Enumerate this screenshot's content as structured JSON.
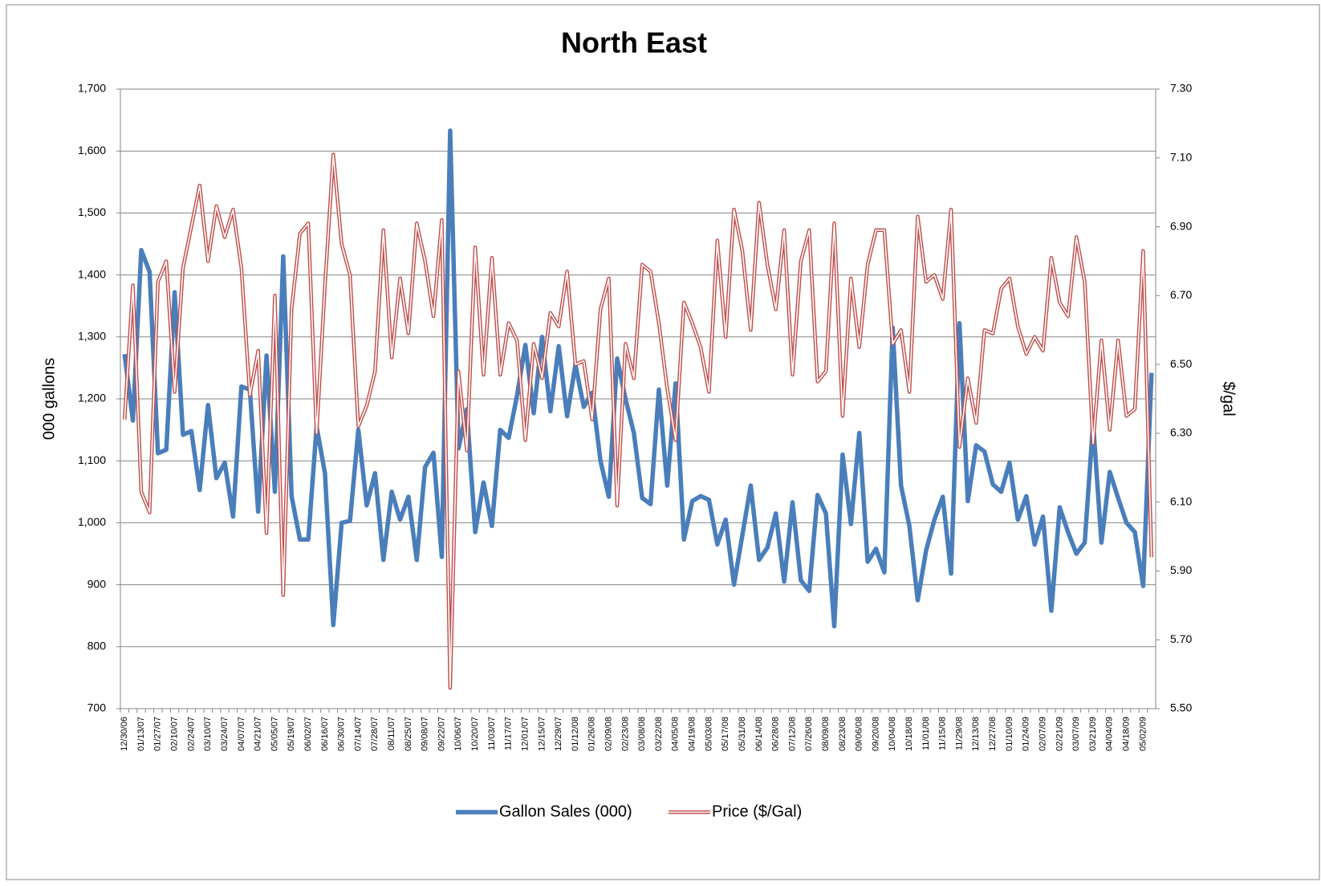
{
  "chart_data": {
    "type": "line",
    "title": "North East",
    "y_label": "000 gallons",
    "y2_label": "$/gal",
    "categories": [
      "12/30/06",
      null,
      "01/13/07",
      null,
      "01/27/07",
      null,
      "02/10/07",
      null,
      "02/24/07",
      null,
      "03/10/07",
      null,
      "03/24/07",
      null,
      "04/07/07",
      null,
      "04/21/07",
      null,
      "05/05/07",
      null,
      "05/19/07",
      null,
      "06/02/07",
      null,
      "06/16/07",
      null,
      "06/30/07",
      null,
      "07/14/07",
      null,
      "07/28/07",
      null,
      "08/11/07",
      null,
      "08/25/07",
      null,
      "09/08/07",
      null,
      "09/22/07",
      null,
      "10/06/07",
      null,
      "10/20/07",
      null,
      "11/03/07",
      null,
      "11/17/07",
      null,
      "12/01/07",
      null,
      "12/15/07",
      null,
      "12/29/07",
      null,
      "01/12/08",
      null,
      "01/26/08",
      null,
      "02/09/08",
      null,
      "02/23/08",
      null,
      "03/08/08",
      null,
      "03/22/08",
      null,
      "04/05/08",
      null,
      "04/19/08",
      null,
      "05/03/08",
      null,
      "05/17/08",
      null,
      "05/31/08",
      null,
      "06/14/08",
      null,
      "06/28/08",
      null,
      "07/12/08",
      null,
      "07/26/08",
      null,
      "08/09/08",
      null,
      "08/23/08",
      null,
      "09/06/08",
      null,
      "09/20/08",
      null,
      "10/04/08",
      null,
      "10/18/08",
      null,
      "11/01/08",
      null,
      "11/15/08",
      null,
      "11/29/08",
      null,
      "12/13/08",
      null,
      "12/27/08",
      null,
      "01/10/09",
      null,
      "01/24/09",
      null,
      "02/07/09",
      null,
      "02/21/09",
      null,
      "03/07/09",
      null,
      "03/21/09",
      null,
      "04/04/09",
      null,
      "04/18/09",
      null,
      "05/02/09",
      null
    ],
    "series": [
      {
        "name": "Gallon Sales (000)",
        "color": "#4a7ebb",
        "style": "solid",
        "values": [
          1272,
          1165,
          1440,
          1405,
          1112,
          1118,
          1372,
          1142,
          1148,
          1053,
          1190,
          1072,
          1097,
          1010,
          1220,
          1215,
          1018,
          1270,
          1050,
          1430,
          1043,
          973,
          973,
          1155,
          1080,
          835,
          1000,
          1003,
          1150,
          1028,
          1080,
          940,
          1050,
          1005,
          1042,
          940,
          1090,
          1113,
          945,
          1633,
          1120,
          1183,
          985,
          1065,
          995,
          1150,
          1137,
          1205,
          1287,
          1177,
          1300,
          1180,
          1285,
          1172,
          1255,
          1187,
          1210,
          1100,
          1042,
          1265,
          1200,
          1145,
          1040,
          1030,
          1215,
          1060,
          1225,
          973,
          1035,
          1043,
          1037,
          965,
          1005,
          900,
          980,
          1060,
          940,
          960,
          1015,
          905,
          1033,
          907,
          890,
          1045,
          1015,
          833,
          1110,
          998,
          1145,
          937,
          958,
          920,
          1315,
          1060,
          995,
          875,
          955,
          1005,
          1042,
          918,
          1322,
          1035,
          1125,
          1115,
          1062,
          1050,
          1097,
          1005,
          1043,
          965,
          1010,
          858,
          1025,
          985,
          950,
          968,
          1162,
          968,
          1082,
          1040,
          1000,
          985,
          898,
          1242
        ]
      },
      {
        "name": "Price ($/Gal)",
        "color": "#c0504d",
        "style": "double",
        "axis": "y2",
        "values": [
          6.34,
          6.73,
          6.13,
          6.07,
          6.74,
          6.8,
          6.42,
          6.78,
          6.9,
          7.02,
          6.8,
          6.96,
          6.87,
          6.95,
          6.78,
          6.41,
          6.54,
          6.01,
          6.7,
          5.83,
          6.66,
          6.88,
          6.91,
          6.3,
          6.73,
          7.11,
          6.85,
          6.76,
          6.32,
          6.38,
          6.48,
          6.89,
          6.52,
          6.75,
          6.59,
          6.91,
          6.8,
          6.64,
          6.92,
          5.56,
          6.48,
          6.25,
          6.84,
          6.47,
          6.81,
          6.47,
          6.62,
          6.57,
          6.28,
          6.56,
          6.46,
          6.65,
          6.61,
          6.77,
          6.5,
          6.51,
          6.34,
          6.66,
          6.75,
          6.09,
          6.56,
          6.46,
          6.79,
          6.77,
          6.62,
          6.43,
          6.28,
          6.68,
          6.62,
          6.55,
          6.42,
          6.86,
          6.58,
          6.95,
          6.83,
          6.6,
          6.97,
          6.79,
          6.66,
          6.89,
          6.47,
          6.8,
          6.89,
          6.45,
          6.48,
          6.91,
          6.35,
          6.75,
          6.55,
          6.79,
          6.89,
          6.89,
          6.56,
          6.6,
          6.42,
          6.93,
          6.74,
          6.76,
          6.69,
          6.95,
          6.26,
          6.46,
          6.33,
          6.6,
          6.59,
          6.72,
          6.75,
          6.61,
          6.53,
          6.58,
          6.54,
          6.81,
          6.68,
          6.64,
          6.87,
          6.74,
          6.27,
          6.57,
          6.31,
          6.57,
          6.35,
          6.37,
          6.83,
          5.94
        ]
      }
    ],
    "ylim": [
      700,
      1700
    ],
    "yticks": [
      700,
      800,
      900,
      {
        "value": 1000,
        "label": "1,000"
      },
      {
        "value": 1100,
        "label": "1,100"
      },
      {
        "value": 1200,
        "label": "1,200"
      },
      {
        "value": 1300,
        "label": "1,300"
      },
      {
        "value": 1400,
        "label": "1,400"
      },
      {
        "value": 1500,
        "label": "1,500"
      },
      {
        "value": 1600,
        "label": "1,600"
      },
      {
        "value": 1700,
        "label": "1,700"
      }
    ],
    "y2lim": [
      5.5,
      7.3
    ],
    "y2ticks": [
      {
        "value": 5.5,
        "label": "5.50"
      },
      {
        "value": 5.7,
        "label": "5.70"
      },
      {
        "value": 5.9,
        "label": "5.90"
      },
      {
        "value": 6.1,
        "label": "6.10"
      },
      {
        "value": 6.3,
        "label": "6.30"
      },
      {
        "value": 6.5,
        "label": "6.50"
      },
      {
        "value": 6.7,
        "label": "6.70"
      },
      {
        "value": 6.9,
        "label": "6.90"
      },
      {
        "value": 7.1,
        "label": "7.10"
      },
      {
        "value": 7.3,
        "label": "7.30"
      }
    ],
    "grid": true,
    "legend": "bottom"
  }
}
